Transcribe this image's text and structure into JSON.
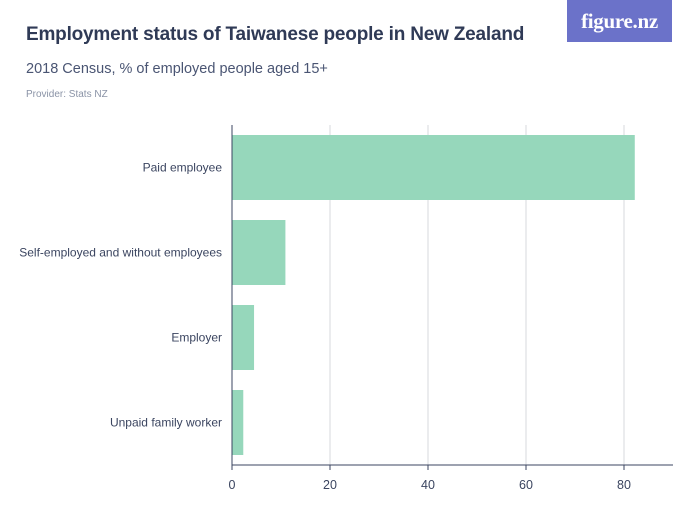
{
  "header": {
    "title": "Employment status of Taiwanese people in New Zealand",
    "subtitle": "2018 Census, % of employed people aged 15+",
    "provider": "Provider: Stats NZ"
  },
  "brand": {
    "logo_text": "figure.nz",
    "logo_color": "#6b72c9"
  },
  "chart_data": {
    "type": "bar",
    "orientation": "horizontal",
    "categories": [
      "Paid employee",
      "Self-employed and without employees",
      "Employer",
      "Unpaid family worker"
    ],
    "values": [
      82.2,
      10.9,
      4.5,
      2.3
    ],
    "xlim": [
      0,
      90
    ],
    "xticks": [
      0,
      20,
      40,
      60,
      80
    ],
    "grid": true,
    "bar_color": "#96d7bb",
    "legend": "none"
  }
}
